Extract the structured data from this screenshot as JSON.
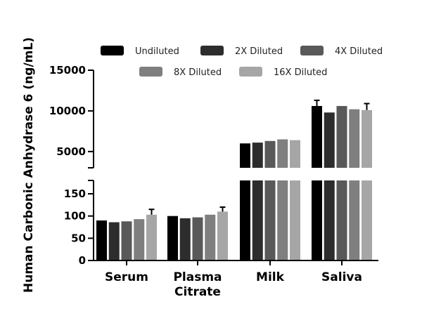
{
  "chart_data": {
    "type": "bar",
    "ylabel": "Human Carbonic Anhydrase 6 (ng/mL)",
    "categories": [
      "Serum",
      "Plasma Citrate",
      "Milk",
      "Saliva"
    ],
    "category_lines": [
      [
        "Serum"
      ],
      [
        "Plasma",
        "Citrate"
      ],
      [
        "Milk"
      ],
      [
        "Saliva"
      ]
    ],
    "series": [
      {
        "name": "Undiluted",
        "color": "#000000",
        "values": [
          90,
          100,
          6000,
          10600
        ],
        "errors": [
          0,
          0,
          0,
          700
        ]
      },
      {
        "name": "2X Diluted",
        "color": "#2d2d2d",
        "values": [
          86,
          95,
          6100,
          9800
        ],
        "errors": [
          0,
          0,
          0,
          0
        ]
      },
      {
        "name": "4X Diluted",
        "color": "#595959",
        "values": [
          88,
          97,
          6300,
          10600
        ],
        "errors": [
          0,
          0,
          0,
          0
        ]
      },
      {
        "name": "8X Diluted",
        "color": "#7f7f7f",
        "values": [
          93,
          103,
          6500,
          10200
        ],
        "errors": [
          0,
          0,
          0,
          0
        ]
      },
      {
        "name": "16X Diluted",
        "color": "#a6a6a6",
        "values": [
          103,
          110,
          6400,
          10100
        ],
        "errors": [
          12,
          10,
          0,
          800
        ]
      }
    ],
    "y_segments": [
      {
        "range": [
          3000,
          15000
        ],
        "ticks": [
          5000,
          10000,
          15000
        ],
        "tick_labels": [
          "5000",
          "10000",
          "15000"
        ]
      },
      {
        "range": [
          0,
          180
        ],
        "ticks": [
          0,
          50,
          100,
          150
        ],
        "tick_labels": [
          "0",
          "50",
          "100",
          "150"
        ]
      }
    ],
    "legend_position": "top"
  }
}
